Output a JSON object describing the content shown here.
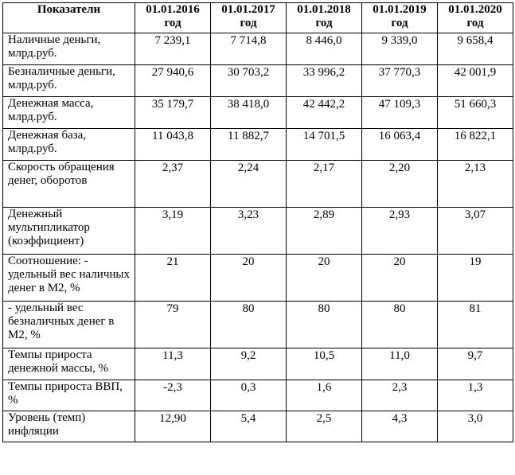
{
  "table": {
    "headers": [
      "Показатели",
      "01.01.2016 год",
      "01.01.2017 год",
      "01.01.2018 год",
      "01.01.2019 год",
      "01.01.2020 год"
    ],
    "rows": [
      {
        "label": "Наличные деньги, млрд.руб.",
        "values": [
          "7 239,1",
          "7 714,8",
          "8 446,0",
          "9 339,0",
          "9 658,4"
        ]
      },
      {
        "label": "Безналичные деньги, млрд.руб.",
        "values": [
          "27 940,6",
          "30 703,2",
          "33 996,2",
          "37 770,3",
          "42 001,9"
        ]
      },
      {
        "label": "Денежная масса, млрд.руб.",
        "values": [
          "35 179,7",
          "38 418,0",
          "42 442,2",
          "47 109,3",
          "51 660,3"
        ]
      },
      {
        "label": "Денежная база, млрд.руб.",
        "values": [
          "11 043,8",
          "11 882,7",
          "14 701,5",
          "16 063,4",
          "16 822,1"
        ]
      },
      {
        "label": "Скорость обращения денег, оборотов",
        "values": [
          "2,37",
          "2,24",
          "2,17",
          "2,20",
          "2,13"
        ]
      },
      {
        "label": "Денежный мультипликатор (коэффициент)",
        "values": [
          "3,19",
          "3,23",
          "2,89",
          "2,93",
          "3,07"
        ]
      },
      {
        "label": "Соотношение: - удельный вес наличных денег в М2, %",
        "values": [
          "21",
          "20",
          "20",
          "20",
          "19"
        ]
      },
      {
        "label": "- удельный вес безналичных денег в М2, %",
        "values": [
          "79",
          "80",
          "80",
          "80",
          "81"
        ]
      },
      {
        "label": "Темпы прироста денежной массы, %",
        "values": [
          "11,3",
          "9,2",
          "10,5",
          "11,0",
          "9,7"
        ]
      },
      {
        "label": "Темпы прироста ВВП, %",
        "values": [
          "-2,3",
          "0,3",
          "1,6",
          "2,3",
          "1,3"
        ]
      },
      {
        "label": "Уровень (темп) инфляции",
        "values": [
          "12,90",
          "5,4",
          "2,5",
          "4,3",
          "3,0"
        ]
      }
    ]
  }
}
